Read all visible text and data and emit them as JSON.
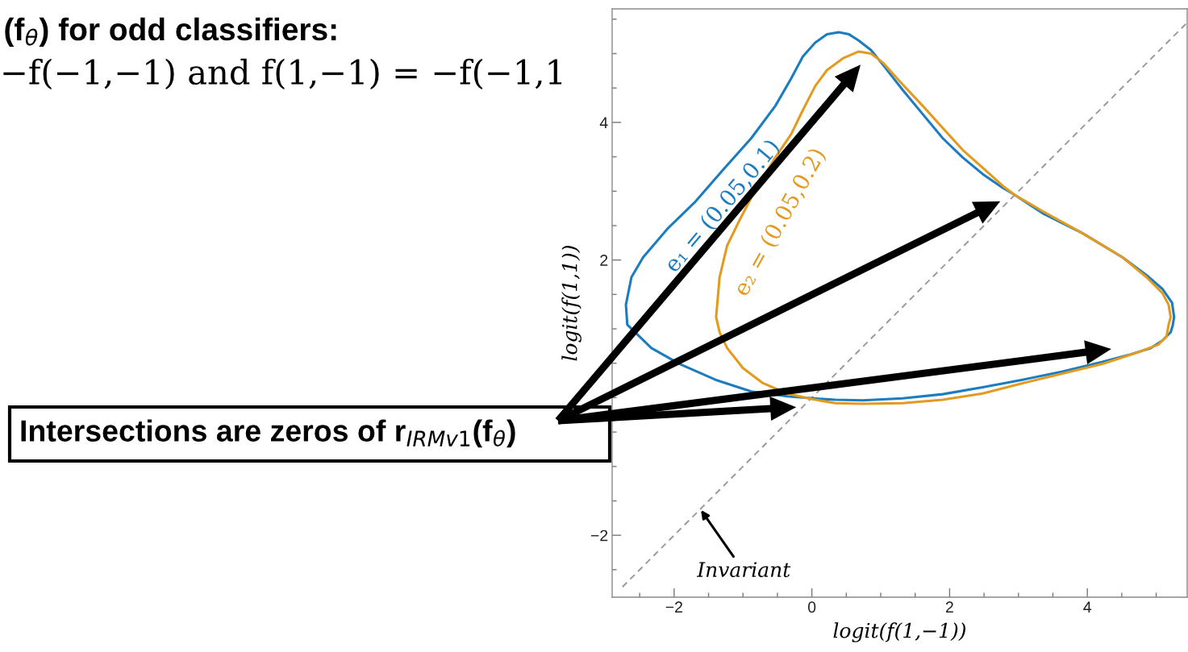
{
  "chart_data": {
    "type": "line",
    "xlabel": "logit(f(1,−1))",
    "ylabel": "logit(f(1,1))",
    "xlim": [
      -2.9,
      5.45
    ],
    "ylim": [
      -2.9,
      5.65
    ],
    "xticks": [
      {
        "value": -2.5,
        "label": null
      },
      {
        "value": -2,
        "label": "−2"
      },
      {
        "value": -1.5,
        "label": null
      },
      {
        "value": -1,
        "label": null
      },
      {
        "value": -0.5,
        "label": null
      },
      0,
      {
        "value": 0.5,
        "label": null
      },
      {
        "value": 1,
        "label": null
      },
      {
        "value": 1.5,
        "label": null
      },
      2,
      {
        "value": 2.5,
        "label": null
      },
      {
        "value": 3,
        "label": null
      },
      {
        "value": 3.5,
        "label": null
      },
      4,
      {
        "value": 4.5,
        "label": null
      },
      {
        "value": 5,
        "label": null
      }
    ],
    "yticks": [
      {
        "value": -2.5,
        "label": null
      },
      {
        "value": -2,
        "label": "−2"
      },
      {
        "value": -1.5,
        "label": null
      },
      {
        "value": -1,
        "label": null
      },
      {
        "value": -0.5,
        "label": null
      },
      {
        "value": 0,
        "label": null
      },
      {
        "value": 0.5,
        "label": null
      },
      {
        "value": 1,
        "label": null
      },
      {
        "value": 1.5,
        "label": null
      },
      2,
      {
        "value": 2.5,
        "label": null
      },
      {
        "value": 3,
        "label": null
      },
      {
        "value": 3.5,
        "label": null
      },
      4,
      {
        "value": 4.5,
        "label": null
      },
      {
        "value": 5,
        "label": null
      },
      {
        "value": 5.5,
        "label": null
      }
    ],
    "series": [
      {
        "color": "#9a9a9a",
        "line_style": "dashed",
        "x": [
          -2.75,
          5.45
        ],
        "values": [
          -2.75,
          5.45
        ]
      }
    ],
    "annotations": [
      "(f$_{θ}$) for odd classifiers:",
      "−f(−1,−1) and f(1,−1) = −f(−1,1",
      "e₁ = (0.05,0.1)",
      "e₂ = (0.05,0.2)",
      "Intersections are zeros of r$_{IRMv1}$(f$_{θ}$)",
      {
        "text": "Invariant",
        "x": -1.62,
        "y": -1.62
      }
    ]
  }
}
